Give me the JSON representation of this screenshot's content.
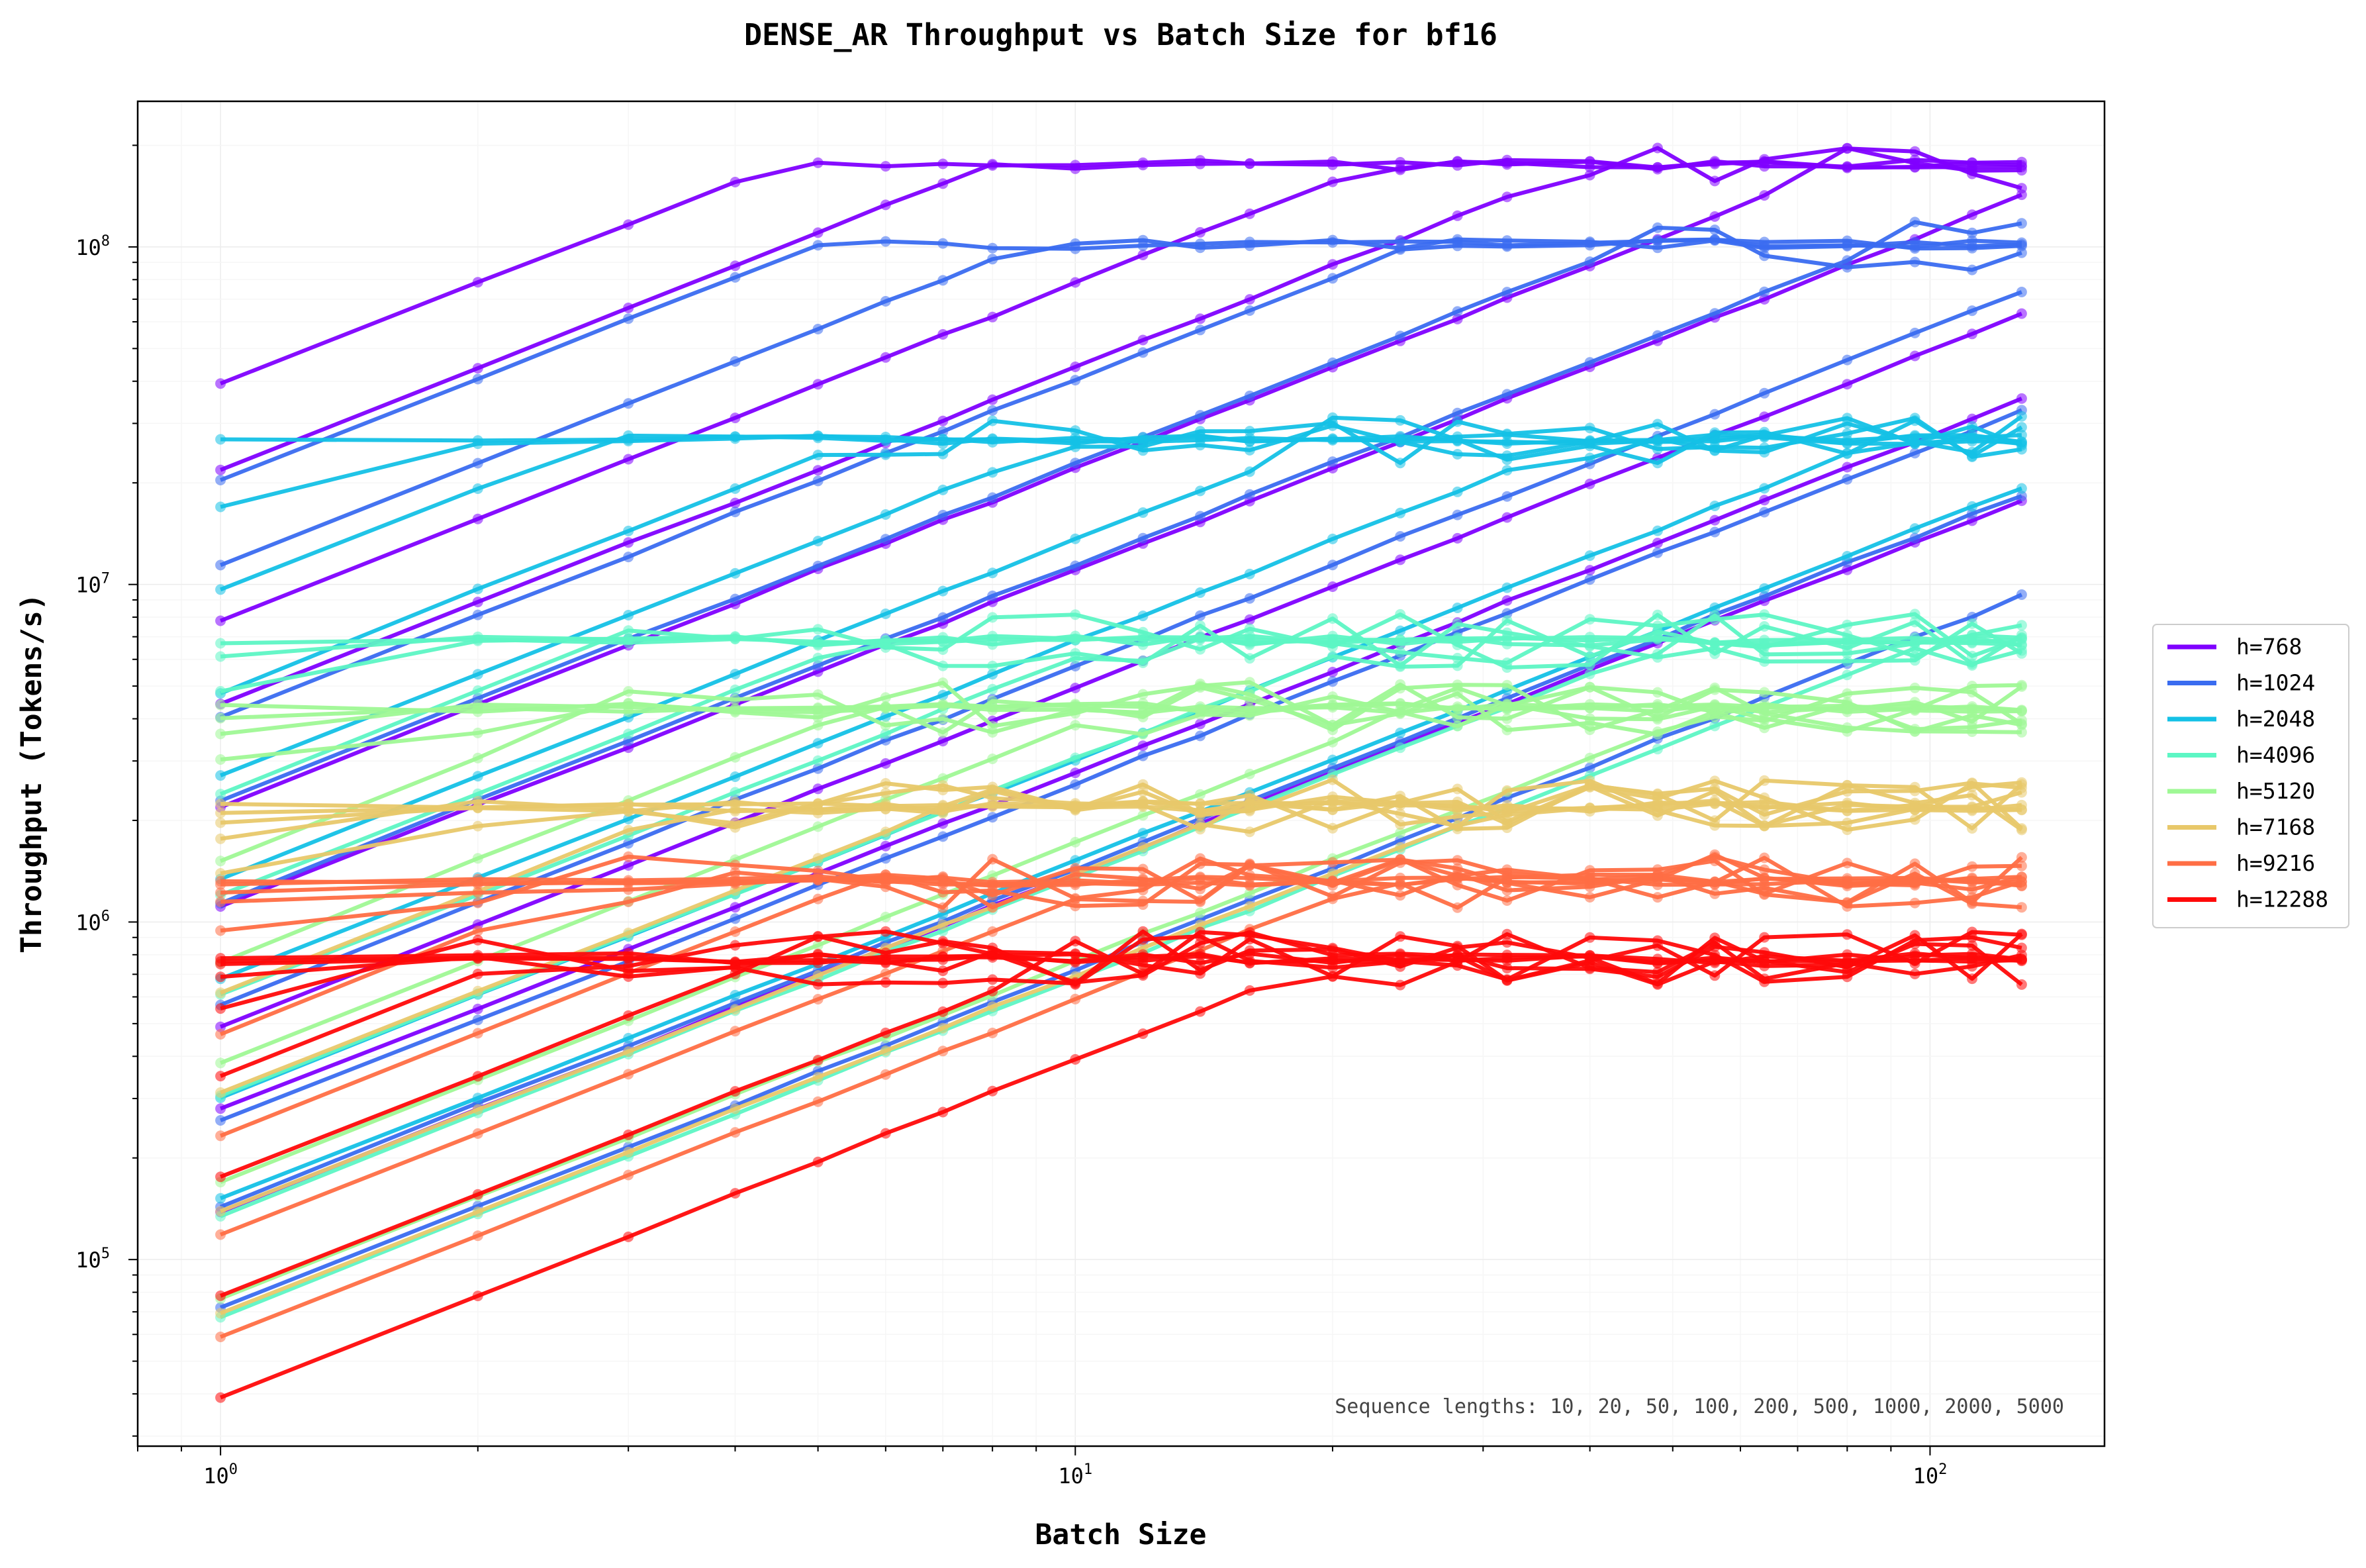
{
  "chart_data": {
    "type": "line",
    "title": "DENSE_AR Throughput vs Batch Size for bf16",
    "xlabel": "Batch Size",
    "ylabel": "Throughput (Tokens/s)",
    "xscale": "log",
    "yscale": "log",
    "xlim": [
      0.8,
      160
    ],
    "ylim": [
      28000,
      270000000
    ],
    "x_ticks": [
      {
        "base": "10",
        "exp": "0",
        "value": 1
      },
      {
        "base": "10",
        "exp": "1",
        "value": 10
      },
      {
        "base": "10",
        "exp": "2",
        "value": 100
      }
    ],
    "y_ticks": [
      {
        "base": "10",
        "exp": "5",
        "value": 100000
      },
      {
        "base": "10",
        "exp": "6",
        "value": 1000000
      },
      {
        "base": "10",
        "exp": "7",
        "value": 10000000
      },
      {
        "base": "10",
        "exp": "8",
        "value": 100000000
      }
    ],
    "grid": true,
    "legend_position": "outside-right",
    "annotation": "Sequence lengths: 10, 20, 50, 100, 200, 500, 1000, 2000, 5000",
    "batch_sizes": [
      1,
      2,
      3,
      4,
      5,
      6,
      7,
      8,
      10,
      12,
      14,
      16,
      20,
      24,
      28,
      32,
      40,
      48,
      56,
      64,
      80,
      96,
      112,
      128
    ],
    "seq_lengths": [
      10,
      20,
      50,
      100,
      200,
      500,
      1000,
      2000,
      5000
    ],
    "series": [
      {
        "name": "h=768",
        "color": "#7f00ff",
        "points_to_peak": [
          0.65,
          0.9,
          1.35,
          1.6,
          1.9,
          2.2,
          2.55,
          2.8,
          3.1
        ],
        "peak": 175000000,
        "peak_seq_len": 10
      },
      {
        "name": "h=1024",
        "color": "#3a6cf0",
        "points_to_peak": [
          0.7,
          0.95,
          1.4,
          1.65,
          1.95,
          2.25,
          2.6,
          2.85,
          3.15
        ],
        "peak": 102000000,
        "peak_seq_len": 10
      },
      {
        "name": "h=2048",
        "color": "#14c1e6",
        "points_to_peak": [
          0.0,
          0.2,
          0.45,
          0.75,
          1.0,
          1.3,
          1.6,
          1.95,
          2.25
        ],
        "peak": 27000000,
        "peak_seq_len": 10
      },
      {
        "name": "h=4096",
        "color": "#5df6c4",
        "points_to_peak": [
          0.0,
          0.05,
          0.15,
          0.45,
          0.75,
          1.05,
          1.35,
          1.7,
          2.0
        ],
        "peak": 6800000,
        "peak_seq_len": 10
      },
      {
        "name": "h=5120",
        "color": "#9ff895",
        "points_to_peak": [
          0.0,
          0.03,
          0.08,
          0.15,
          0.45,
          0.75,
          1.05,
          1.4,
          1.75
        ],
        "peak": 4300000,
        "peak_seq_len": 10
      },
      {
        "name": "h=7168",
        "color": "#e8c86a",
        "points_to_peak": [
          0.0,
          0.02,
          0.05,
          0.1,
          0.2,
          0.55,
          0.85,
          1.2,
          1.5
        ],
        "peak": 2200000,
        "peak_seq_len": 10
      },
      {
        "name": "h=9216",
        "color": "#ff6e45",
        "points_to_peak": [
          0.0,
          0.01,
          0.03,
          0.06,
          0.15,
          0.45,
          0.75,
          1.05,
          1.35
        ],
        "peak": 1320000,
        "peak_seq_len": 10
      },
      {
        "name": "h=12288",
        "color": "#ff0a0a",
        "points_to_peak": [
          0.0,
          0.01,
          0.02,
          0.05,
          0.15,
          0.35,
          0.65,
          1.0,
          1.3
        ],
        "peak": 780000,
        "peak_seq_len": 10
      }
    ]
  }
}
